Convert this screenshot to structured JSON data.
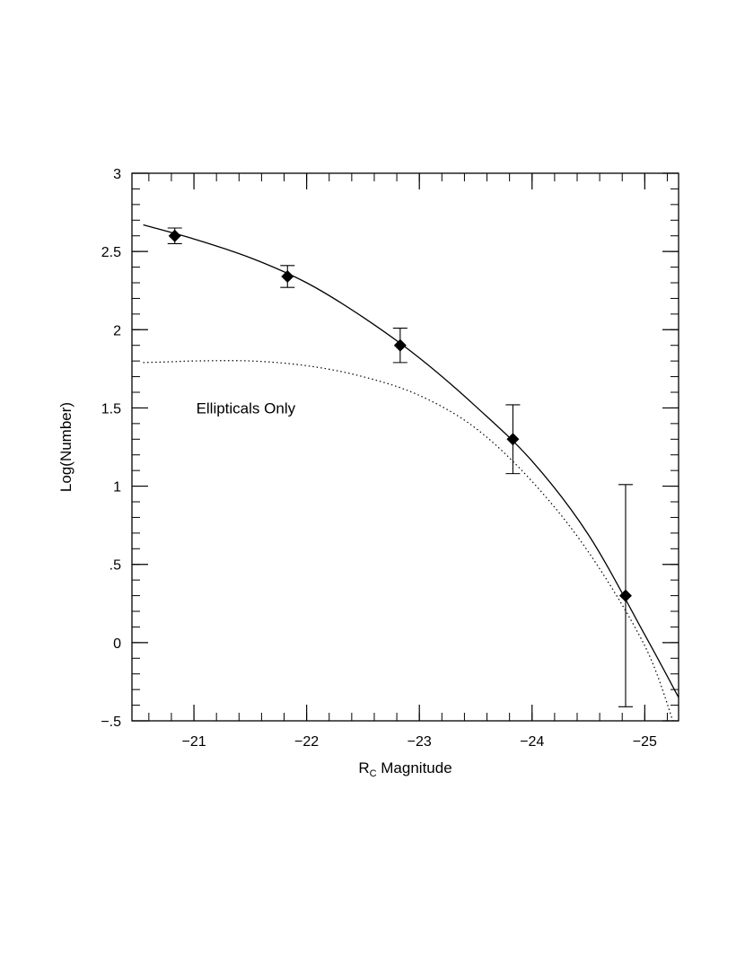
{
  "chart_data": {
    "type": "scatter",
    "xlabel_main": "R",
    "xlabel_sub": "C",
    "xlabel_rest": " Magnitude",
    "ylabel": "Log(Number)",
    "xlim": [
      -20.45,
      -25.3
    ],
    "ylim": [
      -0.5,
      3
    ],
    "x_ticks": [
      {
        "value": -21,
        "label": "−21"
      },
      {
        "value": -22,
        "label": "−22"
      },
      {
        "value": -23,
        "label": "−23"
      },
      {
        "value": -24,
        "label": "−24"
      },
      {
        "value": -25,
        "label": "−25"
      }
    ],
    "y_ticks": [
      {
        "value": 3,
        "label": "3"
      },
      {
        "value": 2.5,
        "label": "2.5"
      },
      {
        "value": 2,
        "label": "2"
      },
      {
        "value": 1.5,
        "label": "1.5"
      },
      {
        "value": 1,
        "label": "1"
      },
      {
        "value": 0.5,
        "label": ".5"
      },
      {
        "value": 0,
        "label": "0"
      },
      {
        "value": -0.5,
        "label": "−.5"
      }
    ],
    "x_minor_step": 0.2,
    "y_minor_step": 0.1,
    "annotation": "Ellipticals Only",
    "points": [
      {
        "x": -20.83,
        "y": 2.6,
        "yerr_low": 2.55,
        "yerr_high": 2.65
      },
      {
        "x": -21.83,
        "y": 2.34,
        "yerr_low": 2.27,
        "yerr_high": 2.41
      },
      {
        "x": -22.83,
        "y": 1.9,
        "yerr_low": 1.79,
        "yerr_high": 2.01
      },
      {
        "x": -23.83,
        "y": 1.3,
        "yerr_low": 1.08,
        "yerr_high": 1.52
      },
      {
        "x": -24.83,
        "y": 0.3,
        "yerr_low": -0.41,
        "yerr_high": 1.01
      }
    ],
    "solid_fit": [
      [
        -20.55,
        2.67
      ],
      [
        -21.0,
        2.58
      ],
      [
        -21.5,
        2.46
      ],
      [
        -22.0,
        2.3
      ],
      [
        -22.5,
        2.08
      ],
      [
        -23.0,
        1.82
      ],
      [
        -23.5,
        1.51
      ],
      [
        -24.0,
        1.16
      ],
      [
        -24.5,
        0.69
      ],
      [
        -25.0,
        0.05
      ],
      [
        -25.3,
        -0.35
      ]
    ],
    "dotted_fit": [
      [
        -20.55,
        1.79
      ],
      [
        -20.8,
        1.795
      ],
      [
        -21.0,
        1.8
      ],
      [
        -21.5,
        1.8
      ],
      [
        -22.0,
        1.77
      ],
      [
        -22.5,
        1.7
      ],
      [
        -23.0,
        1.58
      ],
      [
        -23.5,
        1.37
      ],
      [
        -24.0,
        1.03
      ],
      [
        -24.5,
        0.58
      ],
      [
        -25.0,
        -0.02
      ],
      [
        -25.25,
        -0.5
      ]
    ],
    "grid": false
  }
}
